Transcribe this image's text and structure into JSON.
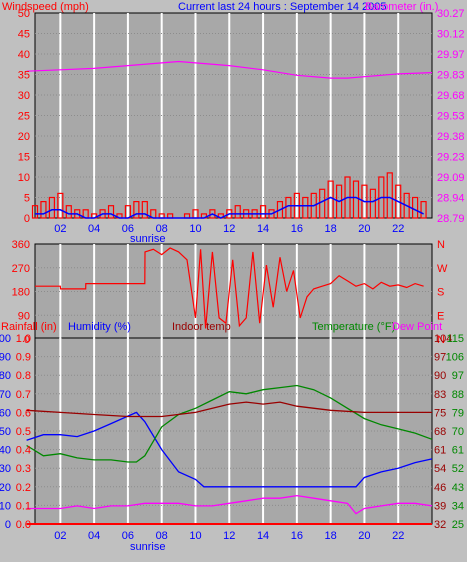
{
  "header": {
    "title": "Current last 24 hours : September 14 2005",
    "left_label": "Windspeed (mph)",
    "right_label": "Barometer (in.)",
    "sunrise_label": "sunrise"
  },
  "colors": {
    "background": "#c0c0c0",
    "plot_bg": "#a8a8a8",
    "grid": "#ffffff",
    "wind_gust": "#ff0000",
    "wind_avg": "#0000ff",
    "barometer": "#ff00ff",
    "direction": "#ff0000",
    "humidity": "#0000ff",
    "indoor": "#990000",
    "temperature": "#008800",
    "dewpoint": "#ff00ff",
    "rain": "#ff0000"
  },
  "chart_data": [
    {
      "type": "line",
      "title": "Current last 24 hours : September 14 2005",
      "xlabel": "",
      "x_ticks": [
        "02",
        "04",
        "06",
        "08",
        "10",
        "12",
        "14",
        "16",
        "18",
        "20",
        "22"
      ],
      "x_range": [
        0.5,
        24.0
      ],
      "y_left": {
        "label": "Windspeed (mph)",
        "ticks": [
          0,
          5,
          10,
          15,
          20,
          25,
          30,
          35,
          40,
          45,
          50
        ],
        "range": [
          0,
          50
        ]
      },
      "y_right": {
        "label": "Barometer (in.)",
        "ticks": [
          "28.79",
          "28.94",
          "29.09",
          "29.23",
          "29.38",
          "29.53",
          "29.68",
          "29.83",
          "29.97",
          "30.12",
          "30.27"
        ],
        "range": [
          28.79,
          30.27
        ]
      },
      "series": [
        {
          "name": "Windspeed (mph)",
          "kind": "gust-bars",
          "x": [
            0.5,
            1.0,
            1.5,
            2.0,
            2.5,
            3.0,
            3.5,
            4.0,
            4.5,
            5.0,
            5.5,
            6.0,
            6.5,
            7.0,
            7.5,
            8.0,
            8.5,
            9.0,
            9.5,
            10.0,
            10.5,
            11.0,
            11.5,
            12.0,
            12.5,
            13.0,
            13.5,
            14.0,
            14.5,
            15.0,
            15.5,
            16.0,
            16.5,
            17.0,
            17.5,
            18.0,
            18.5,
            19.0,
            19.5,
            20.0,
            20.5,
            21.0,
            21.5,
            22.0,
            22.5,
            23.0,
            23.5
          ],
          "values": [
            3,
            4,
            5,
            6,
            3,
            2,
            2,
            1,
            2,
            3,
            1,
            3,
            4,
            4,
            2,
            1,
            1,
            0,
            1,
            2,
            1,
            2,
            1,
            2,
            3,
            2,
            2,
            3,
            2,
            4,
            5,
            6,
            5,
            6,
            7,
            9,
            8,
            10,
            9,
            8,
            7,
            10,
            11,
            8,
            6,
            5,
            4
          ]
        },
        {
          "name": "Average",
          "kind": "avg-line",
          "x": [
            0.5,
            1.0,
            1.5,
            2.0,
            2.5,
            3.0,
            3.5,
            4.0,
            4.5,
            5.0,
            5.5,
            6.0,
            6.5,
            7.0,
            7.5,
            8.0,
            8.5,
            9.0,
            9.5,
            10.0,
            10.5,
            11.0,
            11.5,
            12.0,
            12.5,
            13.0,
            13.5,
            14.0,
            14.5,
            15.0,
            15.5,
            16.0,
            16.5,
            17.0,
            17.5,
            18.0,
            18.5,
            19.0,
            19.5,
            20.0,
            20.5,
            21.0,
            21.5,
            22.0,
            22.5,
            23.0,
            23.5
          ],
          "values": [
            1,
            1,
            2,
            2,
            1,
            1,
            0,
            0,
            1,
            1,
            0,
            0,
            1,
            1,
            0,
            0,
            0,
            0,
            0,
            0,
            0,
            1,
            0,
            1,
            1,
            1,
            1,
            1,
            1,
            2,
            3,
            3,
            3,
            3,
            4,
            5,
            4,
            5,
            5,
            4,
            4,
            5,
            5,
            4,
            3,
            2,
            1
          ]
        },
        {
          "name": "Barometer (in.)",
          "kind": "line",
          "x": [
            0,
            2,
            4,
            6,
            8,
            9,
            10,
            12,
            14,
            16,
            18,
            19,
            20,
            22,
            24
          ],
          "values": [
            29.85,
            29.86,
            29.87,
            29.89,
            29.91,
            29.92,
            29.91,
            29.89,
            29.86,
            29.82,
            29.8,
            29.8,
            29.81,
            29.83,
            29.84
          ]
        }
      ]
    },
    {
      "type": "line",
      "title": "",
      "xlabel": "",
      "x_range": [
        0.5,
        24.0
      ],
      "y_left": {
        "label": "",
        "ticks": [
          0,
          90,
          180,
          270,
          360
        ],
        "range": [
          0,
          360
        ]
      },
      "y_right": {
        "label": "",
        "ticks": [
          "N",
          "W",
          "S",
          "E",
          "N"
        ],
        "range": [
          0,
          360
        ]
      },
      "series": [
        {
          "name": "",
          "kind": "line",
          "x": [
            0.5,
            2.0,
            2.01,
            3.5,
            3.51,
            7.0,
            7.01,
            7.5,
            8.0,
            8.5,
            9.0,
            9.5,
            10.0,
            10.3,
            10.6,
            11.0,
            11.4,
            11.8,
            12.2,
            12.6,
            13.0,
            13.4,
            13.8,
            14.2,
            14.6,
            15.0,
            15.4,
            15.8,
            16.2,
            16.6,
            17.0,
            17.5,
            18.0,
            18.5,
            19.0,
            19.5,
            20.0,
            20.5,
            21.0,
            21.5,
            22.0,
            22.5,
            23.0,
            23.5
          ],
          "values": [
            200,
            200,
            190,
            190,
            210,
            210,
            330,
            340,
            320,
            345,
            330,
            300,
            80,
            340,
            40,
            330,
            80,
            60,
            300,
            50,
            80,
            330,
            60,
            280,
            120,
            310,
            180,
            260,
            80,
            160,
            190,
            200,
            210,
            240,
            220,
            200,
            210,
            190,
            215,
            200,
            205,
            195,
            210,
            200
          ]
        }
      ]
    },
    {
      "type": "line",
      "title": "",
      "xlabel": "",
      "x_ticks": [
        "02",
        "04",
        "06",
        "08",
        "10",
        "12",
        "14",
        "16",
        "18",
        "20",
        "22"
      ],
      "x_range": [
        0.5,
        24.0
      ],
      "y_left_rain": {
        "label": "Rainfall (in)",
        "ticks": [
          "0.0",
          "0.1",
          "0.2",
          "0.3",
          "0.4",
          "0.5",
          "0.6",
          "0.7",
          "0.8",
          "0.9",
          "1.0"
        ],
        "range": [
          0,
          1.0
        ]
      },
      "y_left_humidity": {
        "label": "Humidity (%)",
        "ticks": [
          0,
          10,
          20,
          30,
          40,
          50,
          60,
          70,
          80,
          90,
          100
        ],
        "range": [
          0,
          100
        ]
      },
      "y_right_dewpoint": {
        "label": "Dew Point",
        "ticks": [
          32,
          39,
          46,
          54,
          61,
          68,
          75,
          83,
          90,
          97,
          104
        ],
        "range": [
          32,
          104
        ]
      },
      "y_right_temp": {
        "label": "Temperature (°F)",
        "ticks": [
          25,
          34,
          43,
          52,
          61,
          70,
          79,
          88,
          97,
          106,
          115
        ],
        "range": [
          25,
          115
        ]
      },
      "indoor_label": "Indoor temp",
      "series": [
        {
          "name": "Humidity (%)",
          "axis": "humidity",
          "x": [
            0,
            1,
            2,
            3,
            4,
            5,
            6,
            6.5,
            7,
            8,
            9,
            10,
            10.5,
            11,
            12,
            13,
            14,
            15,
            16,
            17,
            18,
            19,
            19.5,
            20,
            21,
            22,
            23,
            24
          ],
          "values": [
            45,
            48,
            48,
            47,
            50,
            54,
            58,
            60,
            55,
            40,
            28,
            24,
            20,
            20,
            20,
            20,
            20,
            20,
            20,
            20,
            20,
            20,
            20,
            25,
            28,
            30,
            33,
            35
          ]
        },
        {
          "name": "Temperature (°F)",
          "axis": "temp",
          "x": [
            0,
            1,
            2,
            3,
            4,
            5,
            6,
            6.5,
            7,
            8,
            9,
            10,
            11,
            12,
            13,
            14,
            15,
            16,
            17,
            18,
            19,
            20,
            21,
            22,
            23,
            24
          ],
          "values": [
            63,
            58,
            59,
            57,
            56,
            56,
            55,
            55,
            58,
            72,
            78,
            81,
            85,
            89,
            88,
            90,
            91,
            92,
            90,
            86,
            81,
            76,
            73,
            71,
            69,
            66
          ]
        },
        {
          "name": "Dew Point",
          "axis": "dewpoint",
          "x": [
            0,
            1,
            2,
            3,
            4,
            5,
            6,
            7,
            8,
            9,
            10,
            11,
            12,
            13,
            14,
            15,
            16,
            17,
            18,
            19,
            19.5,
            20,
            21,
            22,
            23,
            24
          ],
          "values": [
            38,
            38,
            38,
            39,
            38,
            39,
            39,
            40,
            40,
            40,
            39,
            39,
            40,
            41,
            42,
            42,
            43,
            42,
            41,
            40,
            36,
            38,
            39,
            40,
            40,
            39
          ]
        },
        {
          "name": "Indoor temp",
          "axis": "temp",
          "x": [
            0,
            2,
            4,
            6,
            8,
            10,
            12,
            13,
            14,
            15,
            16,
            18,
            20,
            22,
            24
          ],
          "values": [
            80,
            79,
            78,
            77,
            77,
            79,
            83,
            84,
            83,
            84,
            82,
            80,
            79,
            79,
            79
          ]
        },
        {
          "name": "Rainfall (in)",
          "axis": "rain",
          "x": [
            0,
            24
          ],
          "values": [
            0,
            0
          ]
        }
      ]
    }
  ]
}
